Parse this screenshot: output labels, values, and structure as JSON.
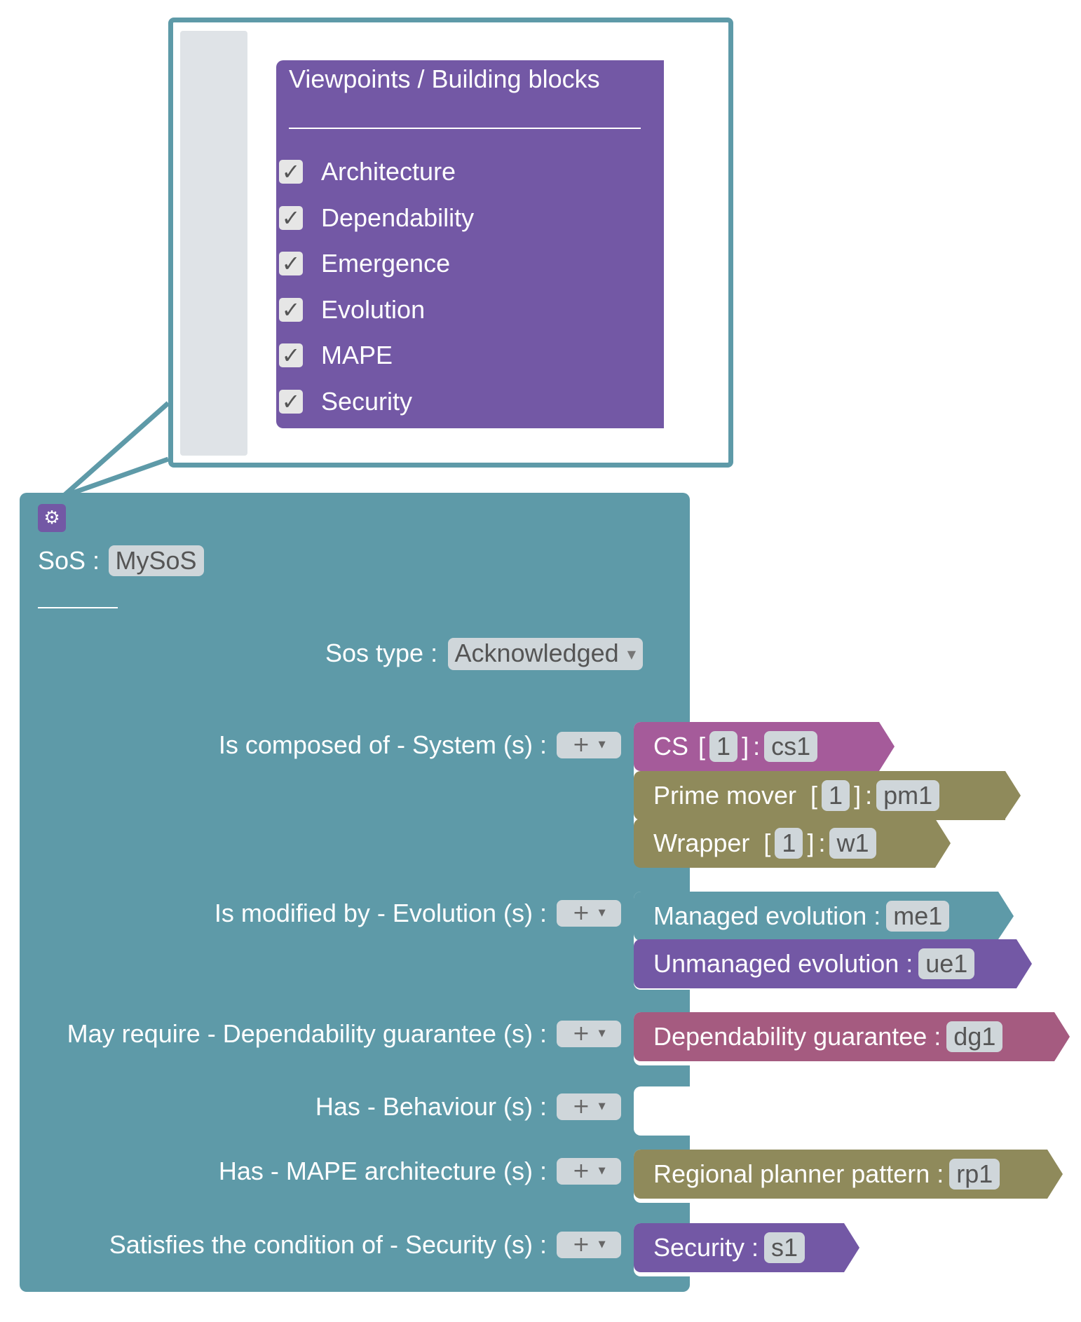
{
  "colors": {
    "sos_block": "#5e9aa8",
    "options_block": "#7358a5",
    "cs_block": "#a55b9a",
    "olive_block": "#8f8a5b",
    "unmanaged_block": "#7358a5",
    "dependability_block": "#a55b80",
    "field_bg": "#cfd6da"
  },
  "popup": {
    "title": "Viewpoints / Building blocks",
    "options": [
      {
        "label": "Architecture",
        "checked": true,
        "check_glyph": "✓"
      },
      {
        "label": "Dependability",
        "checked": true,
        "check_glyph": "✓"
      },
      {
        "label": "Emergence",
        "checked": true,
        "check_glyph": "✓"
      },
      {
        "label": "Evolution",
        "checked": true,
        "check_glyph": "✓"
      },
      {
        "label": "MAPE",
        "checked": true,
        "check_glyph": "✓"
      },
      {
        "label": "Security",
        "checked": true,
        "check_glyph": "✓"
      }
    ]
  },
  "sos": {
    "gear_icon": "⚙",
    "label": "SoS :",
    "name": "MySoS",
    "type_label": "Sos type :",
    "type_value": "Acknowledged",
    "dropdown_arrow": "▼",
    "plus": "+",
    "rows": [
      {
        "label": "Is composed of - System (s) :"
      },
      {
        "label": "Is modified by - Evolution (s) :"
      },
      {
        "label": "May require - Dependability guarantee (s) :"
      },
      {
        "label": "Has - Behaviour (s) :"
      },
      {
        "label": "Has - MAPE architecture (s) :"
      },
      {
        "label": "Satisfies the condition of - Security (s) :"
      }
    ]
  },
  "blocks": {
    "cs": {
      "name": "CS",
      "bracket_open": "[",
      "count": "1",
      "bracket_close": "]",
      "colon": ":",
      "id": "cs1"
    },
    "prime_mover": {
      "name": "Prime mover",
      "bracket_open": "[",
      "count": "1",
      "bracket_close": "]",
      "colon": ":",
      "id": "pm1"
    },
    "wrapper": {
      "name": "Wrapper",
      "bracket_open": "[",
      "count": "1",
      "bracket_close": "]",
      "colon": ":",
      "id": "w1"
    },
    "managed": {
      "label": "Managed evolution :",
      "id": "me1"
    },
    "unmanaged": {
      "label": "Unmanaged evolution :",
      "id": "ue1"
    },
    "dependability": {
      "label": "Dependability guarantee :",
      "id": "dg1"
    },
    "regional": {
      "label": "Regional planner pattern :",
      "id": "rp1"
    },
    "security": {
      "label": "Security :",
      "id": "s1"
    }
  }
}
